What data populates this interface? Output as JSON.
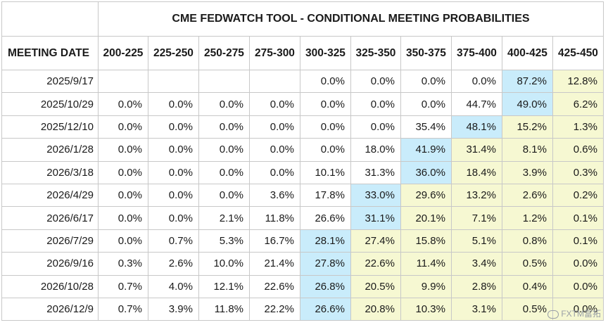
{
  "chart_data": {
    "type": "table",
    "title": "CME FEDWATCH TOOL - CONDITIONAL MEETING PROBABILITIES",
    "row_header": "MEETING DATE",
    "columns": [
      "200-225",
      "225-250",
      "250-275",
      "275-300",
      "300-325",
      "325-350",
      "350-375",
      "375-400",
      "400-425",
      "425-450"
    ],
    "rows": [
      {
        "date": "2025/9/17",
        "values": [
          "",
          "",
          "",
          "",
          "0.0%",
          "0.0%",
          "0.0%",
          "0.0%",
          "87.2%",
          "12.8%"
        ]
      },
      {
        "date": "2025/10/29",
        "values": [
          "0.0%",
          "0.0%",
          "0.0%",
          "0.0%",
          "0.0%",
          "0.0%",
          "0.0%",
          "44.7%",
          "49.0%",
          "6.2%"
        ]
      },
      {
        "date": "2025/12/10",
        "values": [
          "0.0%",
          "0.0%",
          "0.0%",
          "0.0%",
          "0.0%",
          "0.0%",
          "35.4%",
          "48.1%",
          "15.2%",
          "1.3%"
        ]
      },
      {
        "date": "2026/1/28",
        "values": [
          "0.0%",
          "0.0%",
          "0.0%",
          "0.0%",
          "0.0%",
          "18.0%",
          "41.9%",
          "31.4%",
          "8.1%",
          "0.6%"
        ]
      },
      {
        "date": "2026/3/18",
        "values": [
          "0.0%",
          "0.0%",
          "0.0%",
          "0.0%",
          "10.1%",
          "31.3%",
          "36.0%",
          "18.4%",
          "3.9%",
          "0.3%"
        ]
      },
      {
        "date": "2026/4/29",
        "values": [
          "0.0%",
          "0.0%",
          "0.0%",
          "3.6%",
          "17.8%",
          "33.0%",
          "29.6%",
          "13.2%",
          "2.6%",
          "0.2%"
        ]
      },
      {
        "date": "2026/6/17",
        "values": [
          "0.0%",
          "0.0%",
          "2.1%",
          "11.8%",
          "26.6%",
          "31.1%",
          "20.1%",
          "7.1%",
          "1.2%",
          "0.1%"
        ]
      },
      {
        "date": "2026/7/29",
        "values": [
          "0.0%",
          "0.7%",
          "5.3%",
          "16.7%",
          "28.1%",
          "27.4%",
          "15.8%",
          "5.1%",
          "0.8%",
          "0.1%"
        ]
      },
      {
        "date": "2026/9/16",
        "values": [
          "0.3%",
          "2.6%",
          "10.0%",
          "21.4%",
          "27.8%",
          "22.6%",
          "11.4%",
          "3.4%",
          "0.5%",
          "0.0%"
        ]
      },
      {
        "date": "2026/10/28",
        "values": [
          "0.7%",
          "4.0%",
          "12.1%",
          "22.6%",
          "26.8%",
          "20.5%",
          "9.9%",
          "2.8%",
          "0.4%",
          "0.0%"
        ]
      },
      {
        "date": "2026/12/9",
        "values": [
          "0.7%",
          "3.9%",
          "11.8%",
          "22.2%",
          "26.6%",
          "20.8%",
          "10.3%",
          "3.1%",
          "0.5%",
          "0.0%"
        ]
      }
    ],
    "highlight": {
      "blue": "#c9ecfb",
      "yellow": "#f6f8d2",
      "blue_cells": [
        [
          0,
          8
        ],
        [
          1,
          8
        ],
        [
          2,
          7
        ],
        [
          3,
          6
        ],
        [
          4,
          6
        ],
        [
          5,
          5
        ],
        [
          6,
          5
        ],
        [
          7,
          4
        ],
        [
          8,
          4
        ],
        [
          9,
          4
        ],
        [
          10,
          4
        ]
      ],
      "yellow_rule": "cells to the right of the highlighted blue cell in each row"
    }
  },
  "watermark": "FXTM富拓"
}
